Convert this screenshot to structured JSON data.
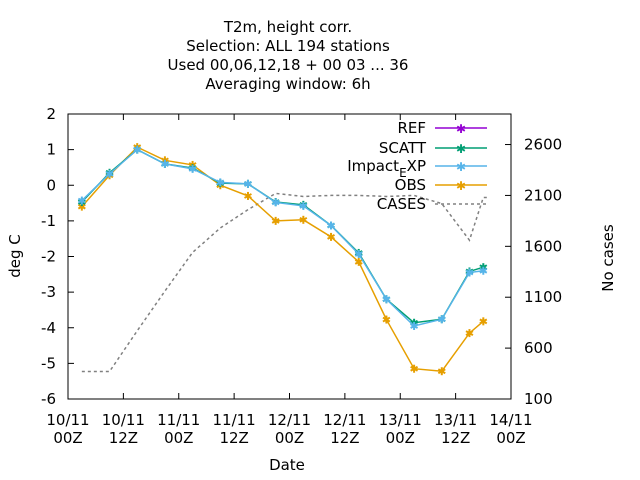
{
  "chart_data": {
    "type": "line",
    "title_lines": [
      "T2m, height corr.",
      "Selection: ALL    194 stations",
      "Used  00,06,12,18 + 00 03 ... 36",
      "Averaging window:  6h"
    ],
    "xlabel": "Date",
    "ylabel": "deg C",
    "y2label": "No cases",
    "x_ticks": [
      {
        "v": 0,
        "l1": "10/11",
        "l2": "00Z"
      },
      {
        "v": 12,
        "l1": "10/11",
        "l2": "12Z"
      },
      {
        "v": 24,
        "l1": "11/11",
        "l2": "00Z"
      },
      {
        "v": 36,
        "l1": "11/11",
        "l2": "12Z"
      },
      {
        "v": 48,
        "l1": "12/11",
        "l2": "00Z"
      },
      {
        "v": 60,
        "l1": "12/11",
        "l2": "12Z"
      },
      {
        "v": 72,
        "l1": "13/11",
        "l2": "00Z"
      },
      {
        "v": 84,
        "l1": "13/11",
        "l2": "12Z"
      },
      {
        "v": 96,
        "l1": "14/11",
        "l2": "00Z"
      }
    ],
    "xlim": [
      0,
      96
    ],
    "ylim": [
      -6,
      2
    ],
    "y_ticks": [
      "2",
      "1",
      "0",
      "-1",
      "-2",
      "-3",
      "-4",
      "-5",
      "-6"
    ],
    "y2lim": [
      100,
      2900
    ],
    "y2_ticks": [
      "2600",
      "2100",
      "1600",
      "1100",
      "600",
      "100"
    ],
    "legend_position": "top-right",
    "colors": {
      "REF": "#9400d3",
      "SCATT": "#009e73",
      "Impact_EXP": "#56b4e9",
      "OBS": "#e69f00",
      "CASES": "#808080"
    },
    "legend": {
      "ref": "REF",
      "scatt": "SCATT",
      "impact_main": "Impact",
      "impact_sub": "E",
      "impact_end": "XP",
      "obs": "OBS",
      "cases": "CASES"
    },
    "x": [
      3,
      9,
      15,
      21,
      27,
      33,
      39,
      45,
      51,
      57,
      63,
      69,
      75,
      81,
      87,
      90
    ],
    "series": [
      {
        "name": "SCATT",
        "values": [
          -0.47,
          0.35,
          1.0,
          0.6,
          0.48,
          0.06,
          0.04,
          -0.47,
          -0.55,
          -1.13,
          -1.9,
          -3.2,
          -3.86,
          -3.76,
          -2.42,
          -2.3
        ]
      },
      {
        "name": "Impact_EXP",
        "values": [
          -0.43,
          0.32,
          1.0,
          0.6,
          0.46,
          0.08,
          0.04,
          -0.48,
          -0.58,
          -1.13,
          -1.93,
          -3.2,
          -3.95,
          -3.76,
          -2.45,
          -2.4
        ]
      },
      {
        "name": "OBS",
        "values": [
          -0.6,
          0.28,
          1.07,
          0.7,
          0.57,
          0.0,
          -0.3,
          -1.0,
          -0.97,
          -1.45,
          -2.15,
          -3.77,
          -5.15,
          -5.22,
          -4.15,
          -3.82
        ]
      },
      {
        "name": "CASES",
        "values": [
          370,
          370,
          770,
          1160,
          1540,
          1780,
          1960,
          2120,
          2090,
          2100,
          2100,
          2090,
          2100,
          2020,
          1660,
          2080
        ]
      }
    ],
    "cases_end": {
      "x": 91,
      "value": 2080
    }
  }
}
